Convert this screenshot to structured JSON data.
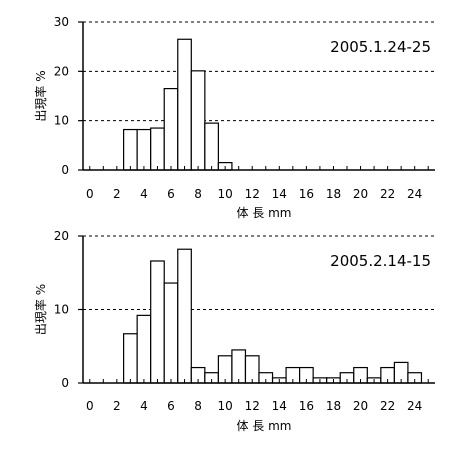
{
  "chart_data": [
    {
      "type": "bar",
      "subtype": "histogram",
      "annotation": "2005.1.24-25",
      "xlabel": "体 長 mm",
      "ylabel": "出現率 %",
      "xlim": [
        -0.5,
        25.5
      ],
      "ylim": [
        0,
        30
      ],
      "xticks": [
        0,
        2,
        4,
        6,
        8,
        10,
        12,
        14,
        16,
        18,
        20,
        22,
        24
      ],
      "yticks": [
        0,
        10,
        20,
        30
      ],
      "grid": "horizontal-dashed",
      "bin_width_mm": 1,
      "bins": [
        {
          "x": 3,
          "value": 8.2
        },
        {
          "x": 4,
          "value": 8.2
        },
        {
          "x": 5,
          "value": 8.5
        },
        {
          "x": 6,
          "value": 16.5
        },
        {
          "x": 7,
          "value": 26.5
        },
        {
          "x": 8,
          "value": 20.1
        },
        {
          "x": 9,
          "value": 9.5
        },
        {
          "x": 10,
          "value": 1.5
        }
      ]
    },
    {
      "type": "bar",
      "subtype": "histogram",
      "annotation": "2005.2.14-15",
      "xlabel": "体 長 mm",
      "ylabel": "出現率 %",
      "xlim": [
        -0.5,
        25.5
      ],
      "ylim": [
        0,
        20
      ],
      "xticks": [
        0,
        2,
        4,
        6,
        8,
        10,
        12,
        14,
        16,
        18,
        20,
        22,
        24
      ],
      "yticks": [
        0,
        10,
        20
      ],
      "grid": "horizontal-dashed",
      "bin_width_mm": 1,
      "bins": [
        {
          "x": 3,
          "value": 6.7
        },
        {
          "x": 4,
          "value": 9.2
        },
        {
          "x": 5,
          "value": 16.6
        },
        {
          "x": 6,
          "value": 13.6
        },
        {
          "x": 7,
          "value": 18.2
        },
        {
          "x": 8,
          "value": 2.1
        },
        {
          "x": 9,
          "value": 1.4
        },
        {
          "x": 10,
          "value": 3.7
        },
        {
          "x": 11,
          "value": 4.5
        },
        {
          "x": 12,
          "value": 3.7
        },
        {
          "x": 13,
          "value": 1.4
        },
        {
          "x": 14,
          "value": 0.7
        },
        {
          "x": 15,
          "value": 2.1
        },
        {
          "x": 16,
          "value": 2.1
        },
        {
          "x": 17,
          "value": 0.7
        },
        {
          "x": 18,
          "value": 0.7
        },
        {
          "x": 19,
          "value": 1.4
        },
        {
          "x": 20,
          "value": 2.1
        },
        {
          "x": 21,
          "value": 0.7
        },
        {
          "x": 22,
          "value": 2.1
        },
        {
          "x": 23,
          "value": 2.8
        },
        {
          "x": 24,
          "value": 1.4
        }
      ]
    }
  ]
}
